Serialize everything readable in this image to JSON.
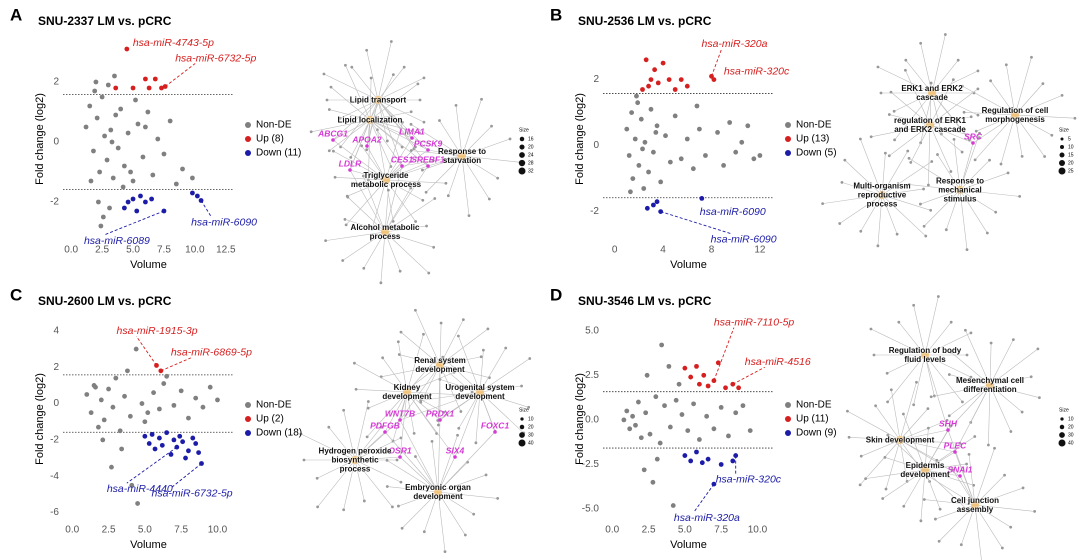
{
  "panel_labels": [
    "A",
    "B",
    "C",
    "D"
  ],
  "chart_data": [
    {
      "type": "scatter",
      "title": "SNU-2337 LM vs. pCRC",
      "xlabel": "Volume",
      "ylabel": "Fold change (log2)",
      "xlim": [
        -0.5,
        13
      ],
      "ylim": [
        -3.2,
        3.4
      ],
      "xticks": [
        {
          "value": 0,
          "label": "0.0"
        },
        2.5,
        {
          "value": 5,
          "label": "5.0"
        },
        7.5,
        {
          "value": 10,
          "label": "10.0"
        },
        12.5
      ],
      "yticks": [
        -2,
        0,
        2
      ],
      "hlines": [
        1.58,
        -1.58
      ],
      "series": [
        {
          "name": "Non-DE",
          "color": "#808080",
          "x": [
            1.2,
            1.5,
            1.8,
            2.0,
            2.1,
            2.3,
            2.5,
            2.7,
            2.9,
            3.0,
            3.2,
            3.4,
            3.6,
            3.8,
            4.0,
            4.3,
            4.6,
            5.0,
            5.4,
            5.8,
            6.2,
            6.6,
            7.0,
            7.5,
            8.0,
            8.5,
            9.0,
            9.8,
            1.6,
            2.2,
            2.6,
            3.1,
            3.5,
            4.2,
            5.2,
            6.0,
            2.4,
            1.9,
            3.3,
            4.8
          ],
          "values": [
            0.5,
            1.2,
            -0.3,
            2.0,
            0.8,
            -1.0,
            1.5,
            0.2,
            -0.6,
            1.9,
            0.4,
            -1.2,
            0.9,
            -0.2,
            1.1,
            -0.8,
            0.3,
            -1.3,
            0.6,
            -0.5,
            1.0,
            -1.1,
            0.1,
            -0.4,
            0.7,
            -1.4,
            -0.9,
            -1.2,
            -1.3,
            -2.0,
            -2.5,
            -2.2,
            2.2,
            -1.5,
            1.4,
            0.5,
            -2.8,
            1.7,
            0.0,
            -1.0
          ]
        },
        {
          "name": "Up (8)",
          "color": "#d62020",
          "x": [
            3.6,
            4.5,
            5.0,
            6.0,
            6.3,
            6.8,
            7.3,
            7.6
          ],
          "values": [
            1.8,
            3.1,
            1.8,
            2.1,
            1.8,
            2.1,
            1.8,
            1.85
          ],
          "point_labels": [
            null,
            "hsa-miR-4743-5p",
            null,
            null,
            null,
            null,
            null,
            "hsa-miR-6732-5p"
          ]
        },
        {
          "name": "Down (11)",
          "color": "#1c1ca8",
          "x": [
            4.3,
            4.6,
            5.0,
            5.3,
            5.6,
            6.0,
            6.5,
            7.5,
            9.8,
            10.2,
            10.5
          ],
          "values": [
            -2.2,
            -2.0,
            -1.9,
            -2.3,
            -1.8,
            -2.0,
            -1.9,
            -2.3,
            -1.7,
            -1.8,
            -1.95
          ],
          "point_labels": [
            null,
            null,
            null,
            null,
            null,
            null,
            null,
            "hsa-miR-6089",
            null,
            null,
            "hsa-miR-6090"
          ]
        }
      ]
    },
    {
      "type": "scatter",
      "title": "SNU-2536 LM vs. pCRC",
      "xlabel": "Volume",
      "ylabel": "Fold change (log2)",
      "xlim": [
        -0.8,
        13
      ],
      "ylim": [
        -2.8,
        3.2
      ],
      "xticks": [
        0,
        4,
        8,
        12
      ],
      "yticks": [
        -2,
        0,
        2
      ],
      "hlines": [
        1.58,
        -1.58
      ],
      "series": [
        {
          "name": "Non-DE",
          "color": "#808080",
          "x": [
            1.0,
            1.2,
            1.4,
            1.5,
            1.7,
            1.9,
            2.0,
            2.2,
            2.4,
            2.5,
            2.8,
            3.0,
            3.2,
            3.5,
            3.8,
            4.2,
            4.6,
            5.0,
            5.5,
            6.0,
            6.5,
            7.0,
            7.5,
            8.5,
            9.0,
            9.5,
            10.0,
            10.5,
            11.0,
            11.5,
            1.3,
            1.8,
            2.3,
            3.4,
            6.8,
            12.0
          ],
          "values": [
            0.5,
            -0.3,
            1.0,
            -1.0,
            0.2,
            1.3,
            -0.6,
            0.8,
            -1.3,
            0.1,
            -0.8,
            1.1,
            -0.2,
            0.6,
            -1.1,
            0.3,
            -0.5,
            0.9,
            -0.4,
            0.2,
            -0.7,
            0.5,
            -0.3,
            0.4,
            -0.6,
            0.7,
            -0.2,
            0.1,
            0.6,
            -0.4,
            -1.4,
            1.5,
            -0.1,
            0.4,
            1.2,
            -0.3
          ]
        },
        {
          "name": "Up (13)",
          "color": "#d62020",
          "x": [
            2.3,
            2.6,
            2.8,
            3.0,
            3.3,
            3.6,
            4.0,
            4.5,
            5.0,
            5.5,
            6.0,
            8.0,
            8.2
          ],
          "values": [
            1.7,
            2.6,
            1.8,
            2.0,
            2.3,
            1.9,
            2.5,
            2.0,
            1.7,
            2.0,
            1.8,
            2.1,
            2.0
          ],
          "point_labels": [
            null,
            null,
            null,
            null,
            null,
            null,
            null,
            null,
            null,
            null,
            null,
            "hsa-miR-320a",
            "hsa-miR-320c"
          ]
        },
        {
          "name": "Down (5)",
          "color": "#1c1ca8",
          "x": [
            2.7,
            3.2,
            3.5,
            3.8,
            7.2
          ],
          "values": [
            -1.9,
            -1.8,
            -1.7,
            -2.0,
            -1.6
          ],
          "point_labels": [
            null,
            null,
            null,
            "hsa-miR-6090",
            "hsa-miR-6090"
          ]
        }
      ]
    },
    {
      "type": "scatter",
      "title": "SNU-2600 LM vs. pCRC",
      "xlabel": "Volume",
      "ylabel": "Fold change (log2)",
      "xlim": [
        -0.5,
        11
      ],
      "ylim": [
        -6.3,
        4.6
      ],
      "xticks": [
        {
          "value": 0,
          "label": "0.0"
        },
        2.5,
        {
          "value": 5,
          "label": "5.0"
        },
        7.5,
        {
          "value": 10,
          "label": "10.0"
        }
      ],
      "yticks": [
        -6,
        -4,
        -2,
        0,
        2,
        4
      ],
      "hlines": [
        1.58,
        -1.58
      ],
      "series": [
        {
          "name": "Non-DE",
          "color": "#808080",
          "x": [
            1.0,
            1.3,
            1.5,
            1.8,
            2.0,
            2.2,
            2.5,
            2.8,
            3.0,
            3.3,
            3.6,
            4.0,
            4.4,
            4.8,
            5.2,
            5.6,
            6.0,
            6.5,
            7.0,
            7.5,
            8.0,
            8.5,
            9.0,
            9.5,
            10.0,
            2.1,
            2.7,
            3.4,
            4.1,
            4.5,
            3.8,
            5.0,
            6.3,
            1.6
          ],
          "values": [
            0.5,
            -0.5,
            1.0,
            -1.3,
            0.2,
            -0.9,
            0.8,
            -0.2,
            1.4,
            -1.5,
            0.4,
            -0.7,
            3.0,
            0.0,
            -0.5,
            0.6,
            -0.3,
            1.5,
            -0.1,
            0.7,
            -0.8,
            0.3,
            -0.2,
            0.9,
            0.2,
            -2.0,
            -3.5,
            -2.5,
            -4.5,
            -5.5,
            1.8,
            -1.0,
            1.1,
            0.9
          ]
        },
        {
          "name": "Up (2)",
          "color": "#d62020",
          "x": [
            5.8,
            6.1
          ],
          "values": [
            2.1,
            1.8
          ],
          "point_labels": [
            "hsa-miR-1915-3p",
            "hsa-miR-6869-5p"
          ]
        },
        {
          "name": "Down (18)",
          "color": "#1c1ca8",
          "x": [
            5.0,
            5.3,
            5.5,
            5.7,
            6.0,
            6.2,
            6.5,
            6.8,
            7.0,
            7.2,
            7.4,
            7.6,
            7.8,
            8.0,
            8.3,
            8.5,
            8.7,
            8.9
          ],
          "values": [
            -1.8,
            -2.2,
            -1.7,
            -2.5,
            -1.9,
            -2.3,
            -1.6,
            -2.8,
            -2.0,
            -2.4,
            -1.8,
            -2.1,
            -3.0,
            -2.6,
            -1.9,
            -2.2,
            -2.7,
            -3.3
          ],
          "point_labels": [
            null,
            null,
            null,
            null,
            null,
            null,
            null,
            null,
            null,
            "hsa-miR-4440",
            null,
            null,
            null,
            null,
            null,
            null,
            null,
            "hsa-miR-6732-5p"
          ]
        }
      ]
    },
    {
      "type": "scatter",
      "title": "SNU-3546 LM vs. pCRC",
      "xlabel": "Volume",
      "ylabel": "Fold change (log2)",
      "xlim": [
        -0.5,
        11
      ],
      "ylim": [
        -5.5,
        5.6
      ],
      "xticks": [
        {
          "value": 0,
          "label": "0.0"
        },
        2.5,
        {
          "value": 5,
          "label": "5.0"
        },
        7.5,
        {
          "value": 10,
          "label": "10.0"
        }
      ],
      "yticks": [
        {
          "value": -5,
          "label": "-5.0"
        },
        -2.5,
        {
          "value": 0,
          "label": "0.0"
        },
        2.5,
        {
          "value": 5,
          "label": "5.0"
        }
      ],
      "hlines": [
        1.58,
        -1.58
      ],
      "series": [
        {
          "name": "Non-DE",
          "color": "#808080",
          "x": [
            0.8,
            1.0,
            1.2,
            1.4,
            1.6,
            1.8,
            2.0,
            2.3,
            2.6,
            3.0,
            3.3,
            3.6,
            4.0,
            4.4,
            4.8,
            5.2,
            5.6,
            6.0,
            6.5,
            7.0,
            7.5,
            8.0,
            8.5,
            9.0,
            9.5,
            2.2,
            2.8,
            3.4,
            3.9,
            4.2,
            4.6,
            3.1,
            2.4
          ],
          "values": [
            0.0,
            0.5,
            -0.5,
            0.2,
            -0.3,
            1.0,
            -1.0,
            0.4,
            -0.8,
            1.3,
            -1.3,
            0.8,
            -0.4,
            1.1,
            0.3,
            -0.6,
            0.9,
            -1.1,
            0.2,
            -0.5,
            0.7,
            -0.9,
            0.4,
            0.8,
            -0.6,
            -2.8,
            -3.5,
            4.2,
            3.0,
            -4.8,
            2.0,
            -2.2,
            2.5
          ]
        },
        {
          "name": "Up (11)",
          "color": "#d62020",
          "x": [
            5.0,
            5.4,
            5.8,
            6.0,
            6.3,
            6.6,
            7.0,
            7.3,
            7.8,
            8.3,
            8.7
          ],
          "values": [
            2.9,
            2.4,
            3.0,
            2.0,
            2.5,
            1.9,
            2.2,
            3.2,
            1.8,
            2.0,
            1.8
          ],
          "point_labels": [
            null,
            null,
            null,
            null,
            null,
            null,
            "hsa-miR-7110-5p",
            null,
            null,
            "hsa-miR-4516",
            null
          ]
        },
        {
          "name": "Down (9)",
          "color": "#1c1ca8",
          "x": [
            5.0,
            5.4,
            5.8,
            6.2,
            6.6,
            7.0,
            7.5,
            8.3,
            8.5
          ],
          "values": [
            -2.0,
            -2.3,
            -1.8,
            -2.4,
            -2.2,
            -3.6,
            -2.5,
            -2.3,
            -2.0
          ],
          "point_labels": [
            null,
            null,
            null,
            null,
            null,
            "hsa-miR-320a",
            null,
            null,
            "hsa-miR-320c"
          ]
        }
      ]
    }
  ],
  "networks": [
    {
      "terms": [
        "Lipid transport",
        "Lipid localization",
        "Triglyceride metabolic process",
        "Alcohol metabolic process",
        "Response to starvation"
      ],
      "genes": [
        "ABCG1",
        "APOA2",
        "LIMA1",
        "PCSK9",
        "CES1",
        "SREBF1",
        "LDLR"
      ],
      "size_legend": {
        "title": "Size",
        "values": [
          16,
          20,
          24,
          28,
          32
        ]
      }
    },
    {
      "terms": [
        "ERK1 and ERK2 cascade",
        "regulation of ERK1 and ERK2 cascade",
        "Regulation of cell morphogenesis",
        "Multi-organism reproductive process",
        "Response to mechanical stimulus"
      ],
      "genes": [
        "SRC"
      ],
      "size_legend": {
        "title": "Size",
        "values": [
          5,
          10,
          15,
          20,
          25
        ]
      }
    },
    {
      "terms": [
        "Hydrogen peroxide biosynthetic process",
        "Renal system development",
        "Kidney development",
        "Urogenital system development",
        "Embryonic organ development"
      ],
      "genes": [
        "WNT7B",
        "PRDX1",
        "PDFGB",
        "OSR1",
        "SIX4",
        "FOXC1"
      ],
      "size_legend": {
        "title": "Size",
        "values": [
          10,
          20,
          30,
          40
        ]
      }
    },
    {
      "terms": [
        "Regulation of body fluid levels",
        "Mesenchymal cell differentiation",
        "Skin development",
        "Epidermis development",
        "Cell junction assembly"
      ],
      "genes": [
        "SHH",
        "PLEC",
        "SNAI1"
      ],
      "size_legend": {
        "title": "Size",
        "values": [
          10,
          20,
          30,
          40
        ]
      }
    }
  ]
}
